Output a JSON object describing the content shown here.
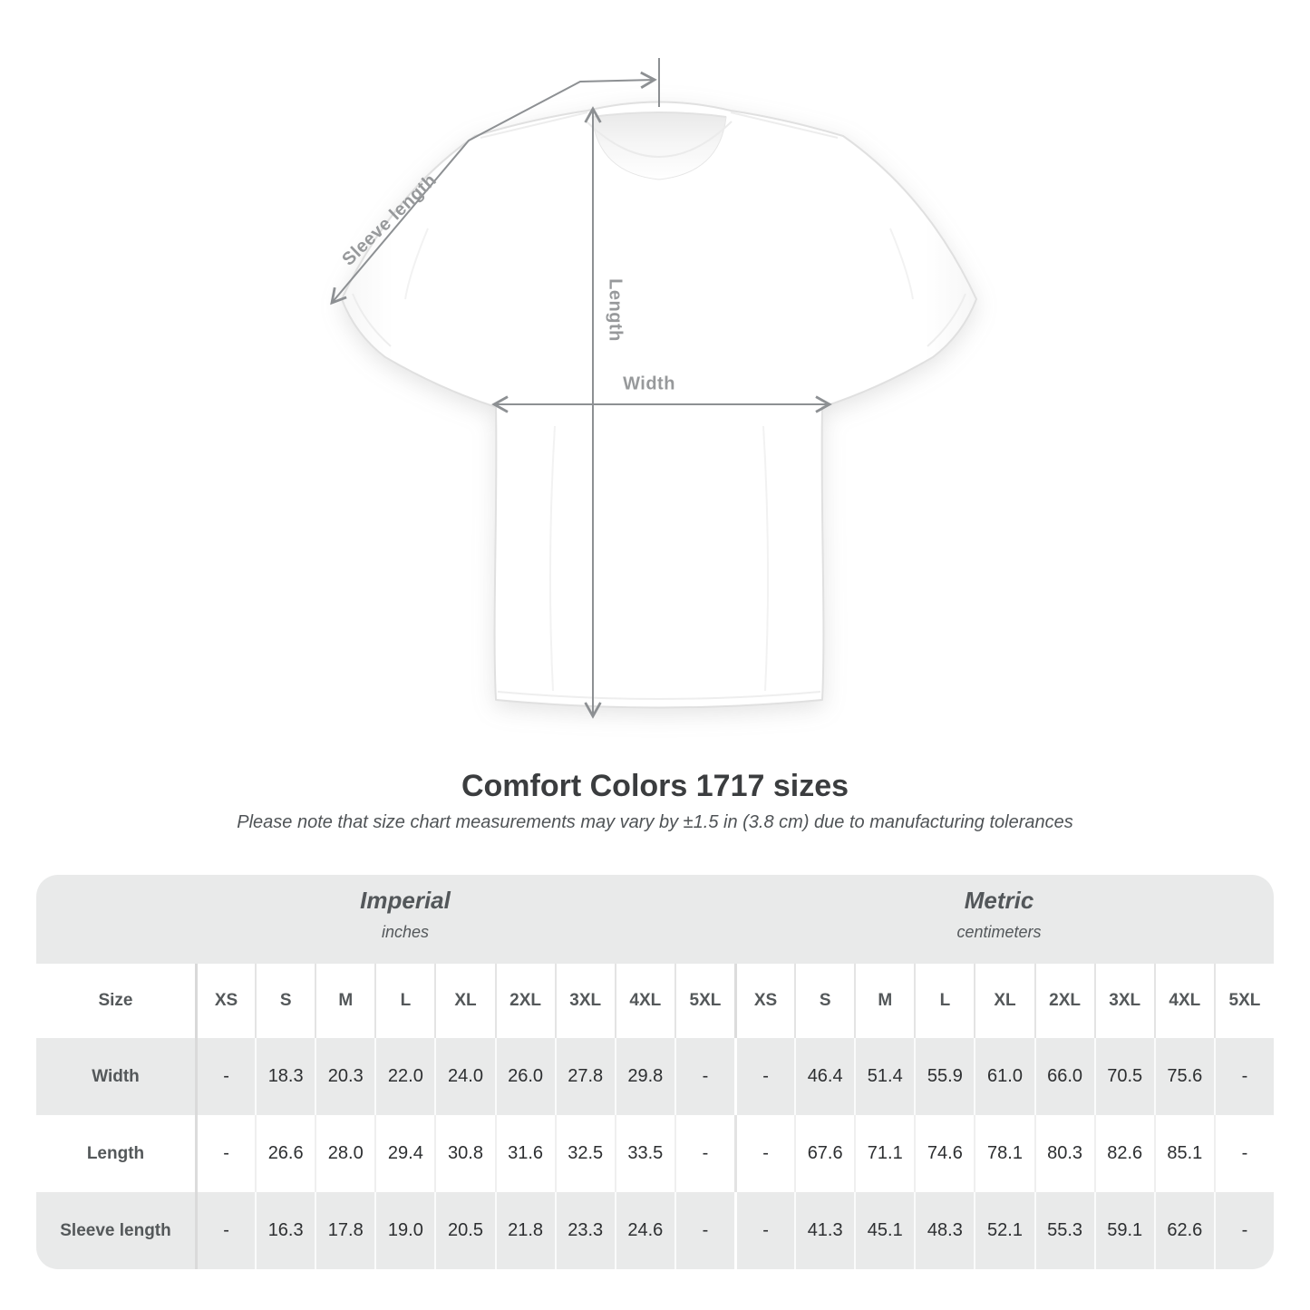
{
  "diagram": {
    "labels": {
      "sleeve_length": "Sleeve length",
      "length": "Length",
      "width": "Width"
    }
  },
  "title": "Comfort Colors 1717 sizes",
  "subtitle": "Please note that size chart measurements may vary by ±1.5 in (3.8 cm) due to manufacturing tolerances",
  "table": {
    "unit_groups": [
      {
        "label": "Imperial",
        "sublabel": "inches"
      },
      {
        "label": "Metric",
        "sublabel": "centimeters"
      }
    ],
    "size_header": "Size",
    "sizes": [
      "XS",
      "S",
      "M",
      "L",
      "XL",
      "2XL",
      "3XL",
      "4XL",
      "5XL"
    ],
    "rows": [
      {
        "label": "Width",
        "imperial": [
          "-",
          "18.3",
          "20.3",
          "22.0",
          "24.0",
          "26.0",
          "27.8",
          "29.8",
          "-"
        ],
        "metric": [
          "-",
          "46.4",
          "51.4",
          "55.9",
          "61.0",
          "66.0",
          "70.5",
          "75.6",
          "-"
        ]
      },
      {
        "label": "Length",
        "imperial": [
          "-",
          "26.6",
          "28.0",
          "29.4",
          "30.8",
          "31.6",
          "32.5",
          "33.5",
          "-"
        ],
        "metric": [
          "-",
          "67.6",
          "71.1",
          "74.6",
          "78.1",
          "80.3",
          "82.6",
          "85.1",
          "-"
        ]
      },
      {
        "label": "Sleeve length",
        "imperial": [
          "-",
          "16.3",
          "17.8",
          "19.0",
          "20.5",
          "21.8",
          "23.3",
          "24.6",
          "-"
        ],
        "metric": [
          "-",
          "41.3",
          "45.1",
          "48.3",
          "52.1",
          "55.3",
          "59.1",
          "62.6",
          "-"
        ]
      }
    ]
  },
  "colors": {
    "dimension_line": "#8d9093",
    "dimension_label": "#97999b",
    "band_gray": "#e9eaea",
    "title_text": "#3b3d3f",
    "value_text": "#2d2f31",
    "header_text": "#54585a"
  }
}
